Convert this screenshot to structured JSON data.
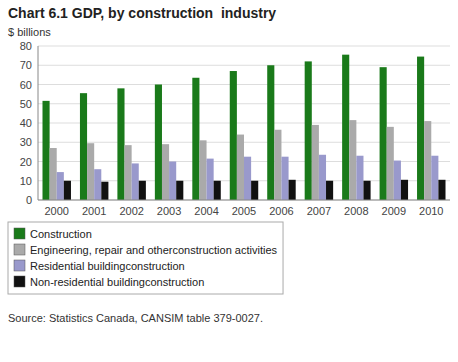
{
  "chart_data": {
    "type": "bar",
    "title": "Chart 6.1 GDP, by construction  industry",
    "y_label": "$ billions",
    "source": "Source: Statistics Canada, CANSIM table 379-0027.",
    "categories": [
      "2000",
      "2001",
      "2002",
      "2003",
      "2004",
      "2005",
      "2006",
      "2007",
      "2008",
      "2009",
      "2010"
    ],
    "series": [
      {
        "name": "Construction",
        "color": "#1a7a1a",
        "values": [
          51.5,
          55.5,
          58.0,
          60.0,
          63.5,
          67.0,
          70.0,
          72.0,
          75.5,
          69.0,
          74.5
        ]
      },
      {
        "name": "Engineering, repair and otherconstruction activities",
        "color": "#aaaaaa",
        "values": [
          27.0,
          29.5,
          28.5,
          29.0,
          31.0,
          34.0,
          36.5,
          39.0,
          41.5,
          38.0,
          41.0
        ]
      },
      {
        "name": "Residential buildingconstruction",
        "color": "#9999cc",
        "values": [
          14.5,
          16.0,
          19.0,
          20.0,
          21.5,
          22.5,
          22.5,
          23.5,
          23.0,
          20.5,
          23.0
        ]
      },
      {
        "name": "Non-residential buildingconstruction",
        "color": "#111111",
        "values": [
          10.0,
          9.5,
          10.0,
          10.0,
          10.0,
          10.0,
          10.5,
          10.0,
          10.0,
          10.5,
          10.5
        ]
      }
    ],
    "ylim": [
      0,
      80
    ],
    "yticks": [
      0,
      10,
      20,
      30,
      40,
      50,
      60,
      70,
      80
    ],
    "grid": true,
    "legend": "bottom"
  }
}
